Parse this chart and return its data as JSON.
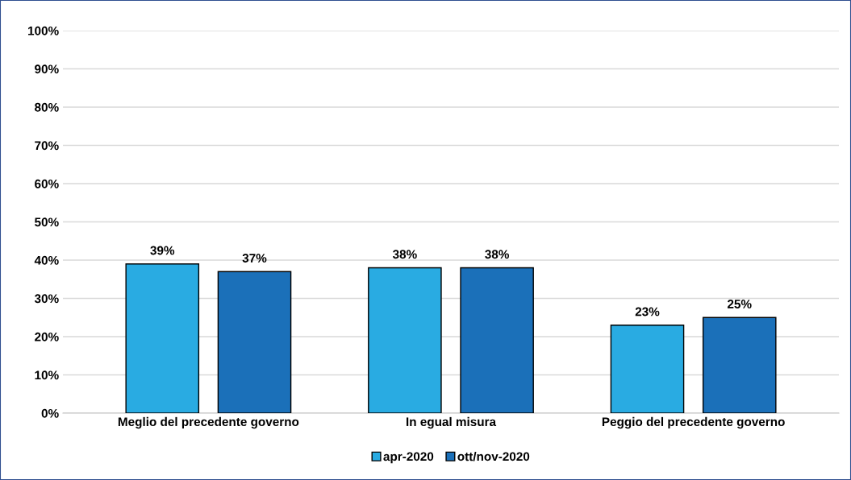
{
  "chart_data": {
    "type": "bar",
    "categories": [
      "Meglio del precedente governo",
      "In egual misura",
      "Peggio del precedente governo"
    ],
    "series": [
      {
        "name": "apr-2020",
        "color": "#29abe2",
        "values": [
          39,
          38,
          23
        ],
        "value_labels": [
          "39%",
          "38%",
          "23%"
        ]
      },
      {
        "name": "ott/nov-2020",
        "color": "#1b70b9",
        "values": [
          37,
          38,
          25
        ],
        "value_labels": [
          "37%",
          "38%",
          "25%"
        ]
      }
    ],
    "ylim": [
      0,
      100
    ],
    "yticks": [
      {
        "value": 0,
        "label": "0%"
      },
      {
        "value": 10,
        "label": "10%"
      },
      {
        "value": 20,
        "label": "20%"
      },
      {
        "value": 30,
        "label": "30%"
      },
      {
        "value": 40,
        "label": "40%"
      },
      {
        "value": 50,
        "label": "50%"
      },
      {
        "value": 60,
        "label": "60%"
      },
      {
        "value": 70,
        "label": "70%"
      },
      {
        "value": 80,
        "label": "80%"
      },
      {
        "value": 90,
        "label": "90%"
      },
      {
        "value": 100,
        "label": "100%"
      }
    ],
    "grid": "y",
    "legend": "bottom"
  }
}
